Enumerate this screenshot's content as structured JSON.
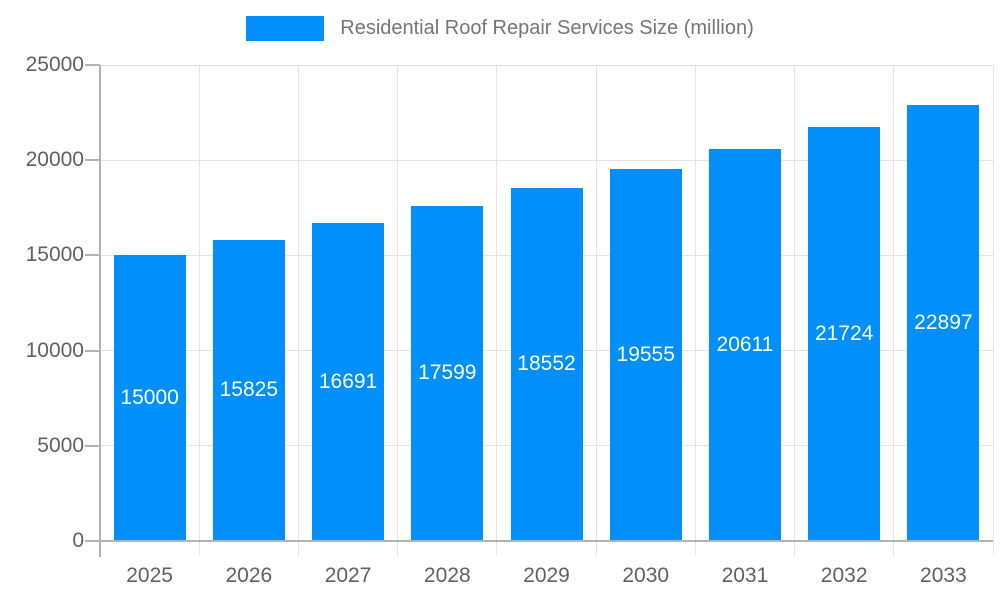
{
  "legend": {
    "label": "Residential Roof Repair Services Size (million)"
  },
  "chart_data": {
    "type": "bar",
    "title": "Residential Roof Repair Services Size (million)",
    "categories": [
      "2025",
      "2026",
      "2027",
      "2028",
      "2029",
      "2030",
      "2031",
      "2032",
      "2033"
    ],
    "series": [
      {
        "name": "Residential Roof Repair Services Size (million)",
        "values": [
          15000,
          15825,
          16691,
          17599,
          18552,
          19555,
          20611,
          21724,
          22897
        ]
      }
    ],
    "xlabel": "",
    "ylabel": "",
    "ylim": [
      0,
      25000
    ],
    "yticks": [
      0,
      5000,
      10000,
      15000,
      20000,
      25000
    ],
    "grid": true,
    "legend_position": "top",
    "value_labels": "inside-bars-white",
    "colors": {
      "bar": "#008FFB",
      "axis_line": "#b3b3b3",
      "gridline": "#e4e4e4",
      "axis_label": "#616161",
      "legend_text": "#757575",
      "bar_label": "#ffffff",
      "background": "#ffffff"
    }
  }
}
